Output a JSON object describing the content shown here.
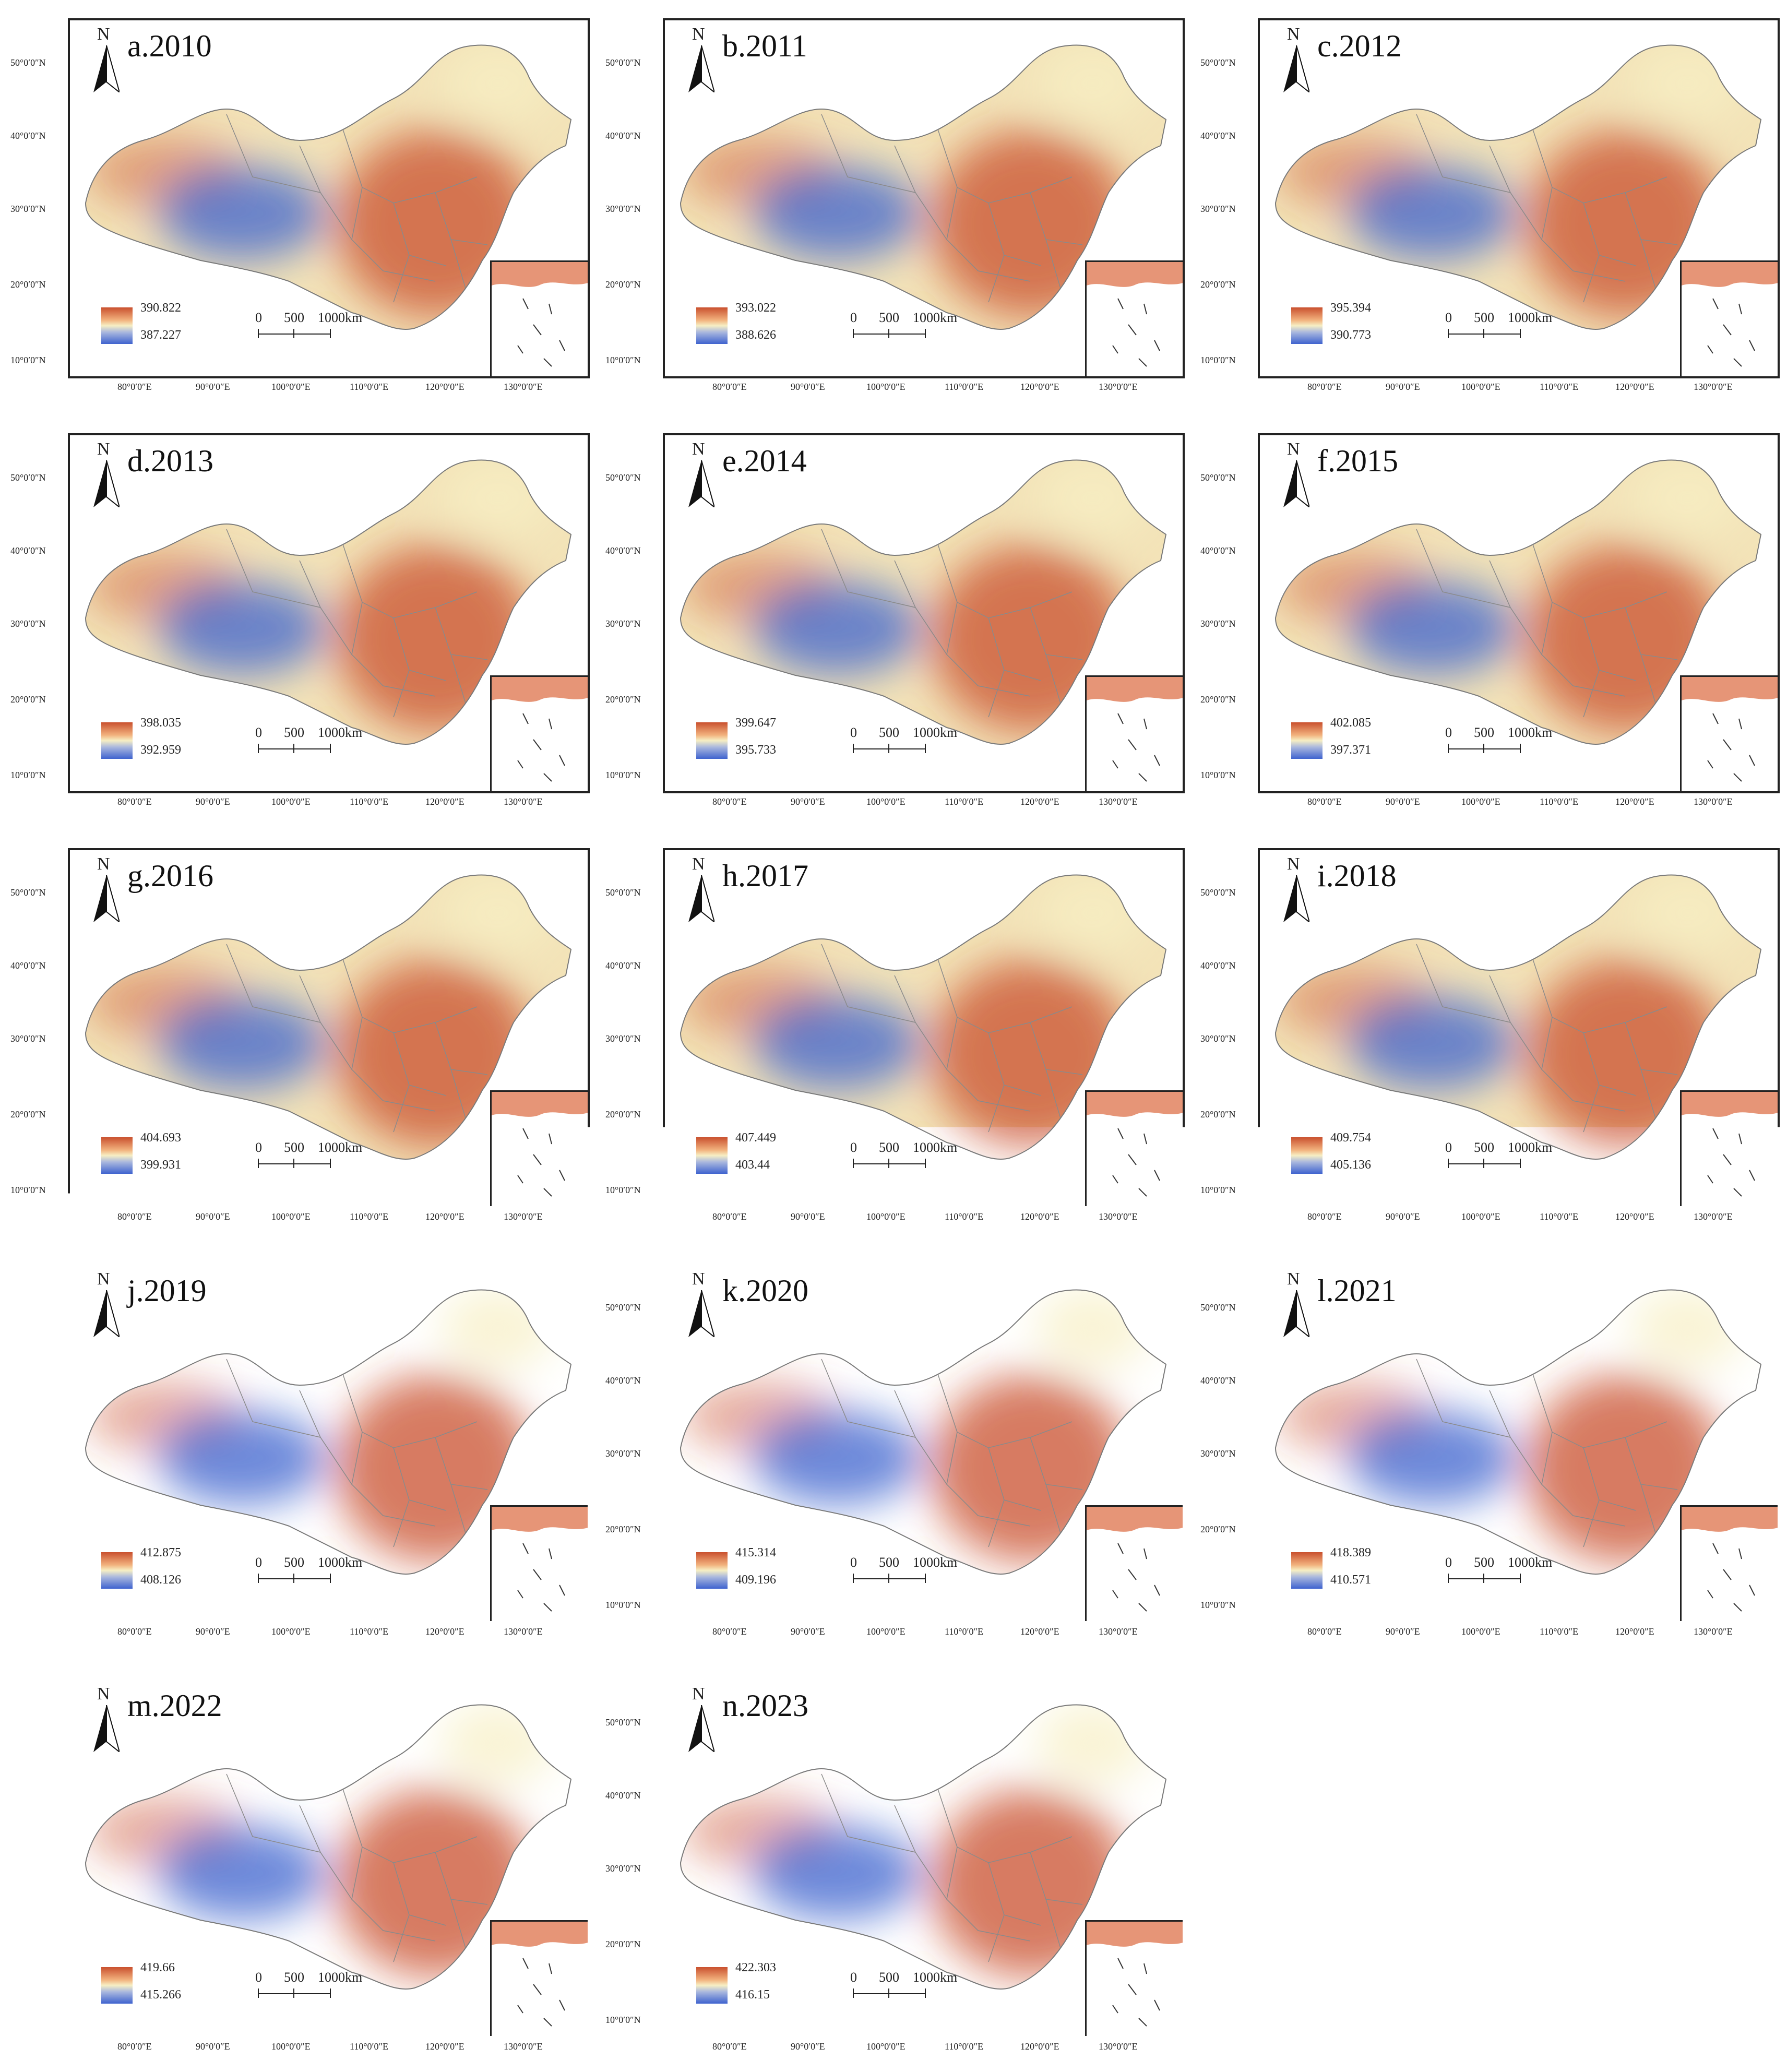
{
  "figure": {
    "colors": {
      "high": "#c9502e",
      "mid": "#f6efc4",
      "low": "#3f63cf",
      "land": "#f3e3b8",
      "border": "#8a8a8a"
    },
    "north_label": "N",
    "scale_labels": {
      "zero": "0",
      "mid": "500",
      "end": "1000km"
    },
    "latitude_labels": [
      "50°0′0″N",
      "40°0′0″N",
      "30°0′0″N",
      "20°0′0″N",
      "10°0′0″N"
    ],
    "longitude_labels": [
      "80°0′0″E",
      "90°0′0″E",
      "100°0′0″E",
      "110°0′0″E",
      "120°0′0″E",
      "130°0′0″E"
    ],
    "panels": [
      {
        "title": "a.2010",
        "legend_max": "390.822",
        "legend_min": "387.227"
      },
      {
        "title": "b.2011",
        "legend_max": "393.022",
        "legend_min": "388.626"
      },
      {
        "title": "c.2012",
        "legend_max": "395.394",
        "legend_min": "390.773"
      },
      {
        "title": "d.2013",
        "legend_max": "398.035",
        "legend_min": "392.959"
      },
      {
        "title": "e.2014",
        "legend_max": "399.647",
        "legend_min": "395.733"
      },
      {
        "title": "f.2015",
        "legend_max": "402.085",
        "legend_min": "397.371"
      },
      {
        "title": "g.2016",
        "legend_max": "404.693",
        "legend_min": "399.931"
      },
      {
        "title": "h.2017",
        "legend_max": "407.449",
        "legend_min": "403.44"
      },
      {
        "title": "i.2018",
        "legend_max": "409.754",
        "legend_min": "405.136"
      },
      {
        "title": "j.2019",
        "legend_max": "412.875",
        "legend_min": "408.126"
      },
      {
        "title": "k.2020",
        "legend_max": "415.314",
        "legend_min": "409.196"
      },
      {
        "title": "l.2021",
        "legend_max": "418.389",
        "legend_min": "410.571"
      },
      {
        "title": "m.2022",
        "legend_max": "419.66",
        "legend_min": "415.266"
      },
      {
        "title": "n.2023",
        "legend_max": "422.303",
        "legend_min": "416.15"
      }
    ]
  }
}
